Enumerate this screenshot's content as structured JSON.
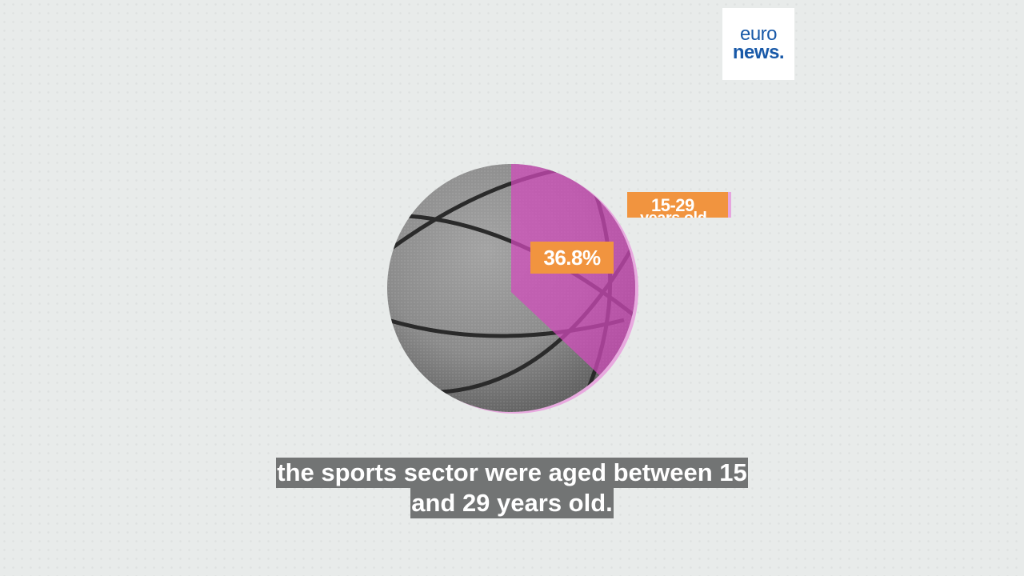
{
  "logo": {
    "line1": "euro",
    "line2": "news."
  },
  "infographic": {
    "percentage_label": "36.8%",
    "age_group_line1": "15-29",
    "age_group_line2": "years old",
    "highlight_color": "#d24bbd",
    "label_color": "#f1943f"
  },
  "subtitles": {
    "line1": "the sports sector were aged between 15",
    "line2": "and 29 years old."
  }
}
